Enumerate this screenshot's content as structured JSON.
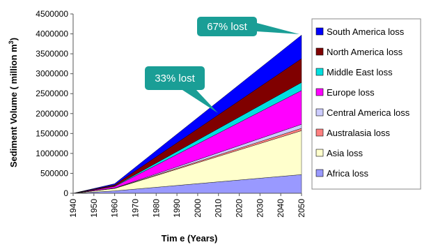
{
  "chart_data": {
    "type": "area",
    "stacked": true,
    "xlabel": "Tim e (Years)",
    "ylabel": "Sediment Volume ( million m",
    "ylabel_superscript": "3",
    "ylabel_close": ")",
    "xlim": [
      1940,
      2050
    ],
    "ylim": [
      0,
      4500000
    ],
    "x_ticks": [
      "1940",
      "1950",
      "1960",
      "1970",
      "1980",
      "1990",
      "2000",
      "2010",
      "2020",
      "2030",
      "2040",
      "2050"
    ],
    "y_ticks": [
      "0",
      "500000",
      "1000000",
      "1500000",
      "2000000",
      "2500000",
      "3000000",
      "3500000",
      "4000000",
      "4500000"
    ],
    "x": [
      1940,
      1960,
      2050
    ],
    "series": [
      {
        "name": "Africa loss",
        "color": "#9999ff",
        "values": [
          0,
          60000,
          470000
        ]
      },
      {
        "name": "Asia loss",
        "color": "#ffffcc",
        "values": [
          0,
          60000,
          1100000
        ]
      },
      {
        "name": "Australasia loss",
        "color": "#ff8080",
        "values": [
          0,
          5000,
          60000
        ]
      },
      {
        "name": "Central America loss",
        "color": "#ccccff",
        "values": [
          0,
          5000,
          100000
        ]
      },
      {
        "name": "Europe loss",
        "color": "#ff00ff",
        "values": [
          0,
          40000,
          850000
        ]
      },
      {
        "name": "Middle East loss",
        "color": "#00e0e0",
        "values": [
          0,
          10000,
          200000
        ]
      },
      {
        "name": "North America loss",
        "color": "#800000",
        "values": [
          0,
          30000,
          600000
        ]
      },
      {
        "name": "South America loss",
        "color": "#0000ff",
        "values": [
          0,
          30000,
          590000
        ]
      }
    ],
    "legend_order": [
      7,
      6,
      5,
      4,
      3,
      2,
      1,
      0
    ],
    "legend_placement": "right",
    "grid": false,
    "annotations": [
      {
        "text": "67% lost",
        "x": 2050,
        "y": 3950000
      },
      {
        "text": "33% lost",
        "x": 2010,
        "y": 2000000
      }
    ],
    "callout_color": "#1a9e96"
  }
}
